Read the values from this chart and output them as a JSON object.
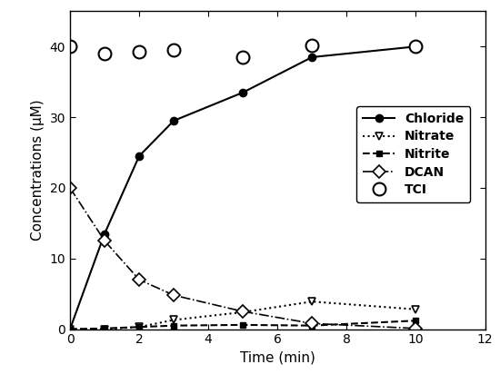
{
  "chloride_x": [
    0,
    1,
    2,
    3,
    5,
    7,
    10
  ],
  "chloride_y": [
    0,
    13.5,
    24.5,
    29.5,
    33.5,
    38.5,
    40.0
  ],
  "nitrate_x": [
    0,
    1,
    2,
    3,
    5,
    7,
    10
  ],
  "nitrate_y": [
    0,
    0,
    0.3,
    1.3,
    2.4,
    3.9,
    2.8
  ],
  "nitrite_x": [
    0,
    1,
    2,
    3,
    5,
    7,
    10
  ],
  "nitrite_y": [
    0,
    0.1,
    0.3,
    0.5,
    0.6,
    0.5,
    1.2
  ],
  "dcan_x": [
    0,
    1,
    2,
    3,
    5,
    7,
    10
  ],
  "dcan_y": [
    20.0,
    12.5,
    7.0,
    4.8,
    2.5,
    0.8,
    0.1
  ],
  "tci_x": [
    0,
    1,
    2,
    3,
    5,
    7,
    10
  ],
  "tci_y": [
    40.0,
    39.0,
    39.2,
    39.5,
    38.5,
    40.2,
    40.0
  ],
  "xlabel": "Time (min)",
  "ylabel": "Concentrations (μM)",
  "xlim": [
    0,
    12
  ],
  "ylim": [
    0,
    45
  ],
  "xticks": [
    0,
    2,
    4,
    6,
    8,
    10,
    12
  ],
  "yticks": [
    0,
    10,
    20,
    30,
    40
  ],
  "legend_labels": [
    "Chloride",
    "Nitrate",
    "Nitrite",
    "DCAN",
    "TCI"
  ],
  "color": "#000000",
  "background_color": "#ffffff"
}
